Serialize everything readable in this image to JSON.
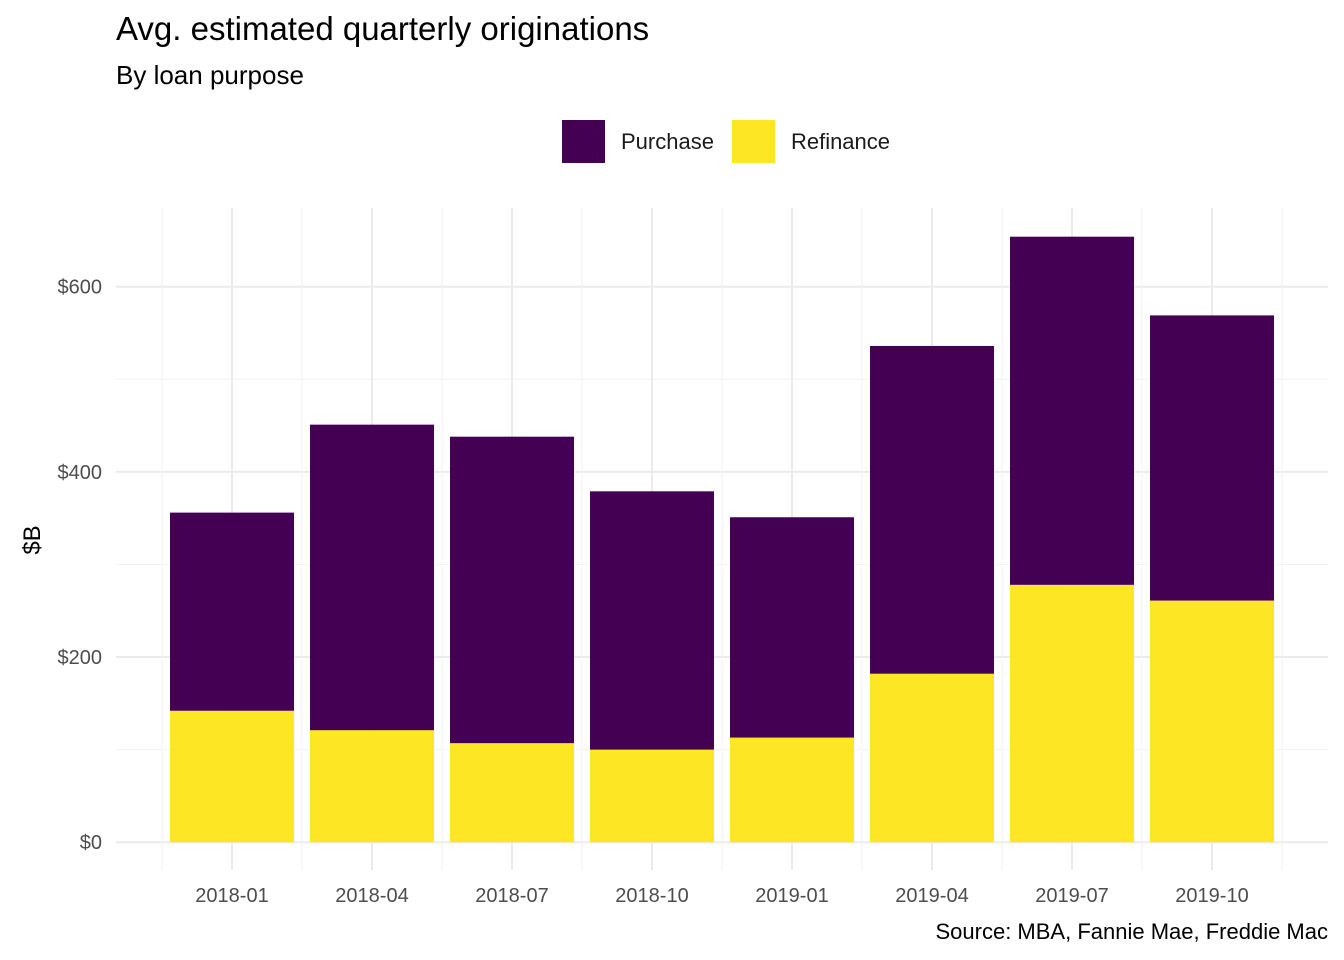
{
  "chart_data": {
    "type": "bar",
    "stacked": true,
    "title": "Avg. estimated quarterly originations",
    "subtitle": "By loan purpose",
    "caption": "Source: MBA, Fannie Mae, Freddie Mac",
    "xlabel": "",
    "ylabel": "$B",
    "categories": [
      "2018-01",
      "2018-04",
      "2018-07",
      "2018-10",
      "2019-01",
      "2019-04",
      "2019-07",
      "2019-10"
    ],
    "series": [
      {
        "name": "Refinance",
        "color": "#FDE725",
        "values": [
          142,
          121,
          107,
          100,
          113,
          182,
          278,
          261
        ]
      },
      {
        "name": "Purchase",
        "color": "#440154",
        "values": [
          214,
          330,
          331,
          279,
          238,
          354,
          376,
          308
        ]
      }
    ],
    "legend_order": [
      "Purchase",
      "Refinance"
    ],
    "ylim": [
      -30,
      685
    ],
    "yticks": [
      0,
      200,
      400,
      600
    ],
    "ytick_labels": [
      "$0",
      "$200",
      "$400",
      "$600"
    ],
    "legend_position": "top",
    "grid": true
  }
}
